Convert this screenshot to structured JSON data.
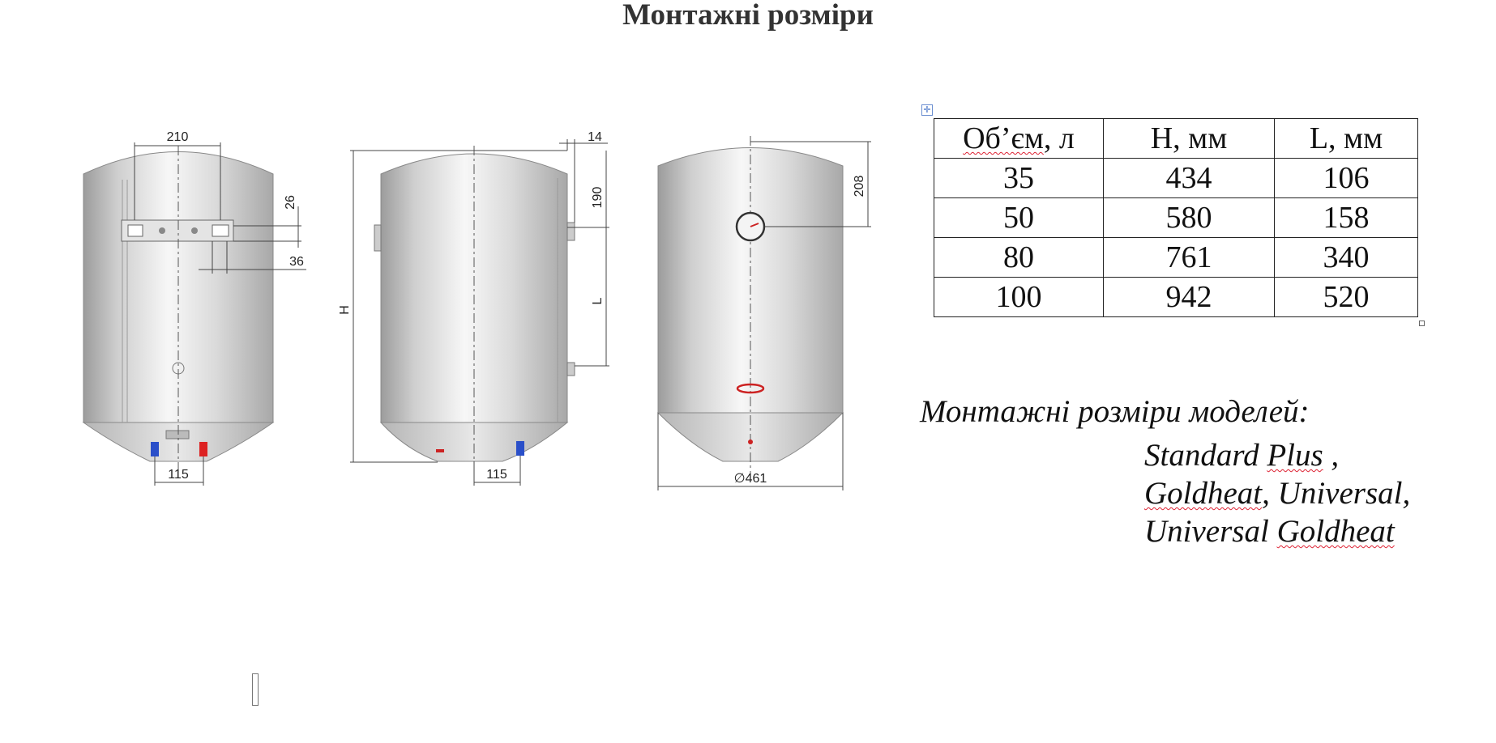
{
  "page": {
    "title": "Монтажні розміри"
  },
  "diagram": {
    "front_view": {
      "dim_bracket_width": "210",
      "dim_bracket_height": "26",
      "dim_bracket_offset": "36",
      "dim_pipes": "115"
    },
    "side_view": {
      "dim_height": "H",
      "dim_wall_gap": "14",
      "dim_top_to_bracket": "190",
      "dim_bracket_spacing": "L",
      "dim_pipes": "115"
    },
    "back_view": {
      "dim_thermometer": "208",
      "dim_diameter": "∅461"
    }
  },
  "table": {
    "headers": [
      "Об’єм, л",
      "H, мм",
      "L, мм"
    ],
    "rows": [
      [
        "35",
        "434",
        "106"
      ],
      [
        "50",
        "580",
        "158"
      ],
      [
        "80",
        "761",
        "340"
      ],
      [
        "100",
        "942",
        "520"
      ]
    ]
  },
  "models": {
    "caption": "Монтажні розміри моделей:",
    "line1_a": "Standard ",
    "line1_b": "Plus",
    "line1_c": " ,",
    "line2_a": "Goldheat",
    "line2_b": ",  Universal,",
    "line3_a": "Universal ",
    "line3_b": "Goldheat"
  },
  "icons": {
    "table_move_handle": "move-icon"
  }
}
